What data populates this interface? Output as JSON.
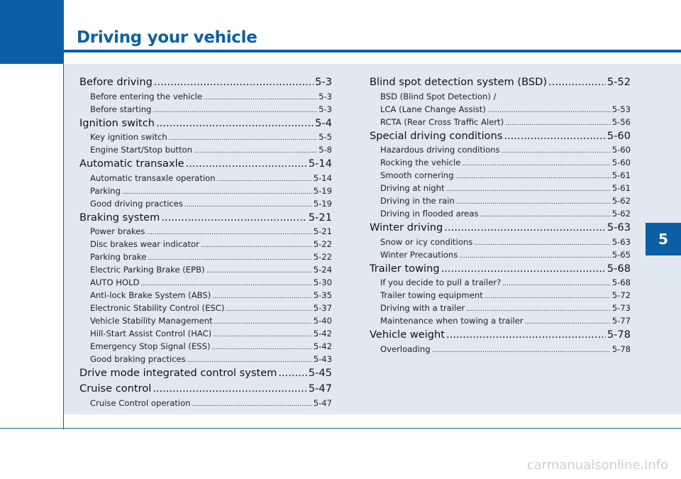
{
  "header": {
    "title": "Driving your vehicle"
  },
  "chapter_tab": "5",
  "left_column": [
    {
      "type": "sec",
      "label": "Before driving",
      "page": "5-3"
    },
    {
      "type": "sub",
      "label": "Before entering the vehicle",
      "page": "5-3"
    },
    {
      "type": "sub",
      "label": "Before starting",
      "page": "5-3"
    },
    {
      "type": "sec",
      "label": "Ignition switch",
      "page": "5-4"
    },
    {
      "type": "sub",
      "label": "Key ignition switch",
      "page": "5-5"
    },
    {
      "type": "sub",
      "label": "Engine Start/Stop button",
      "page": "5-8"
    },
    {
      "type": "sec",
      "label": "Automatic transaxle",
      "page": "5-14"
    },
    {
      "type": "sub",
      "label": "Automatic transaxle operation",
      "page": "5-14"
    },
    {
      "type": "sub",
      "label": "Parking",
      "page": "5-19"
    },
    {
      "type": "sub",
      "label": "Good driving practices",
      "page": "5-19"
    },
    {
      "type": "sec",
      "label": "Braking system",
      "page": "5-21"
    },
    {
      "type": "sub",
      "label": "Power brakes",
      "page": "5-21"
    },
    {
      "type": "sub",
      "label": "Disc brakes wear indicator",
      "page": "5-22"
    },
    {
      "type": "sub",
      "label": "Parking brake",
      "page": "5-22"
    },
    {
      "type": "sub",
      "label": "Electric Parking Brake (EPB)",
      "page": "5-24"
    },
    {
      "type": "sub",
      "label": "AUTO HOLD",
      "page": "5-30"
    },
    {
      "type": "sub",
      "label": "Anti-lock Brake System (ABS)",
      "page": "5-35"
    },
    {
      "type": "sub",
      "label": "Electronic Stability Control (ESC)",
      "page": "5-37"
    },
    {
      "type": "sub",
      "label": "Vehicle Stability Management",
      "page": "5-40"
    },
    {
      "type": "sub",
      "label": "Hill-Start  Assist Control (HAC)",
      "page": "5-42"
    },
    {
      "type": "sub",
      "label": "Emergency Stop Signal (ESS)",
      "page": "5-42"
    },
    {
      "type": "sub",
      "label": "Good braking practices",
      "page": "5-43"
    },
    {
      "type": "sec",
      "label": "Drive mode integrated control system",
      "page": "5-45"
    },
    {
      "type": "sec",
      "label": "Cruise control",
      "page": "5-47"
    },
    {
      "type": "sub",
      "label": "Cruise Control operation",
      "page": "5-47"
    }
  ],
  "right_column": [
    {
      "type": "sec",
      "label": "Blind spot detection system (BSD)",
      "page": "5-52"
    },
    {
      "type": "plain",
      "label": "BSD (Blind Spot Detection) /",
      "page": ""
    },
    {
      "type": "sub",
      "label": "LCA (Lane Change Assist)",
      "page": "5-53"
    },
    {
      "type": "sub",
      "label": "RCTA (Rear Cross Traffic Alert)",
      "page": "5-56"
    },
    {
      "type": "sec",
      "label": "Special driving conditions",
      "page": "5-60"
    },
    {
      "type": "sub",
      "label": "Hazardous driving conditions",
      "page": "5-60"
    },
    {
      "type": "sub",
      "label": "Rocking the vehicle",
      "page": "5-60"
    },
    {
      "type": "sub",
      "label": "Smooth cornering",
      "page": "5-61"
    },
    {
      "type": "sub",
      "label": "Driving at night",
      "page": "5-61"
    },
    {
      "type": "sub",
      "label": "Driving in the rain",
      "page": "5-62"
    },
    {
      "type": "sub",
      "label": "Driving in flooded areas",
      "page": "5-62"
    },
    {
      "type": "sec",
      "label": "Winter driving",
      "page": "5-63"
    },
    {
      "type": "sub",
      "label": "Snow or icy conditions",
      "page": "5-63"
    },
    {
      "type": "sub",
      "label": "Winter Precautions",
      "page": "5-65"
    },
    {
      "type": "sec",
      "label": "Trailer towing",
      "page": "5-68"
    },
    {
      "type": "sub",
      "label": "If you decide to pull a trailer?",
      "page": "5-68"
    },
    {
      "type": "sub",
      "label": "Trailer towing equipment",
      "page": "5-72"
    },
    {
      "type": "sub",
      "label": "Driving with a trailer",
      "page": "5-73"
    },
    {
      "type": "sub",
      "label": "Maintenance when towing a trailer",
      "page": "5-77"
    },
    {
      "type": "sec",
      "label": "Vehicle weight",
      "page": "5-78"
    },
    {
      "type": "sub",
      "label": "Overloading",
      "page": "5-78"
    }
  ],
  "watermark": "carmanualsonline.info",
  "colors": {
    "accent": "#0d5fa5",
    "panel": "#e2e8f0"
  }
}
